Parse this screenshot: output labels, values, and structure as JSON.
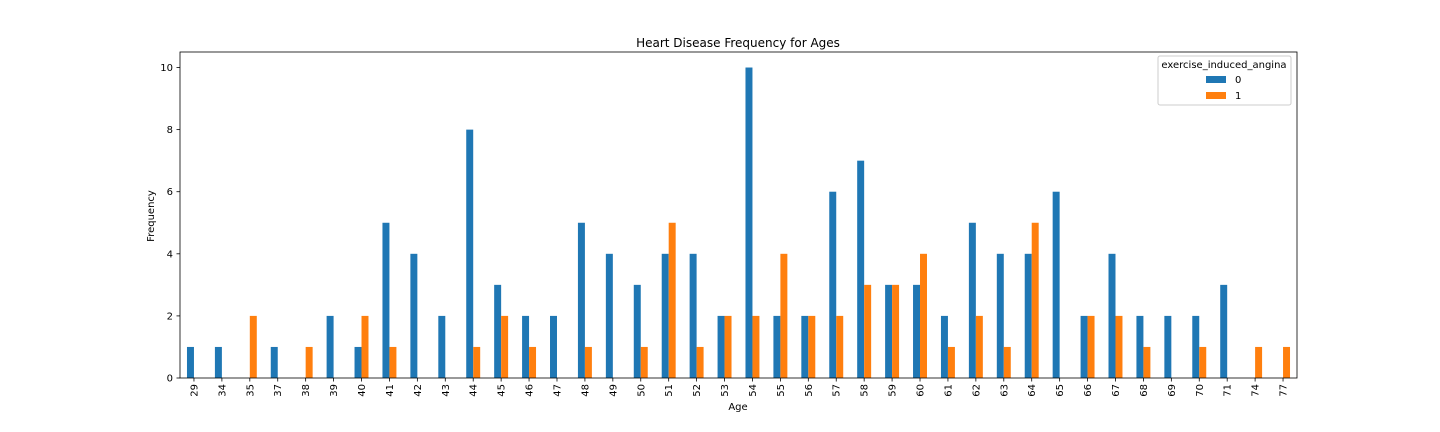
{
  "chart_data": {
    "type": "bar",
    "title": "Heart Disease Frequency for Ages",
    "xlabel": "Age",
    "ylabel": "Frequency",
    "categories": [
      "29",
      "34",
      "35",
      "37",
      "38",
      "39",
      "40",
      "41",
      "42",
      "43",
      "44",
      "45",
      "46",
      "47",
      "48",
      "49",
      "50",
      "51",
      "52",
      "53",
      "54",
      "55",
      "56",
      "57",
      "58",
      "59",
      "60",
      "61",
      "62",
      "63",
      "64",
      "65",
      "66",
      "67",
      "68",
      "69",
      "70",
      "71",
      "74",
      "77"
    ],
    "series": [
      {
        "name": "0",
        "color": "#1f77b4",
        "values": [
          1,
          1,
          0,
          1,
          0,
          2,
          1,
          5,
          4,
          2,
          8,
          3,
          2,
          2,
          5,
          4,
          3,
          4,
          4,
          2,
          10,
          2,
          2,
          6,
          7,
          3,
          3,
          2,
          5,
          4,
          4,
          6,
          2,
          4,
          2,
          2,
          2,
          3,
          0,
          0
        ]
      },
      {
        "name": "1",
        "color": "#ff7f0e",
        "values": [
          0,
          0,
          2,
          0,
          1,
          0,
          2,
          1,
          0,
          0,
          1,
          2,
          1,
          0,
          1,
          0,
          1,
          5,
          1,
          2,
          2,
          4,
          2,
          2,
          3,
          3,
          4,
          1,
          2,
          1,
          5,
          0,
          2,
          2,
          1,
          0,
          1,
          0,
          1,
          1
        ]
      }
    ],
    "ylim": [
      0,
      10.5
    ],
    "yticks": [
      0,
      2,
      4,
      6,
      8,
      10
    ],
    "grid": false,
    "legend": {
      "title": "exercise_induced_angina",
      "placement": "top-right"
    }
  }
}
